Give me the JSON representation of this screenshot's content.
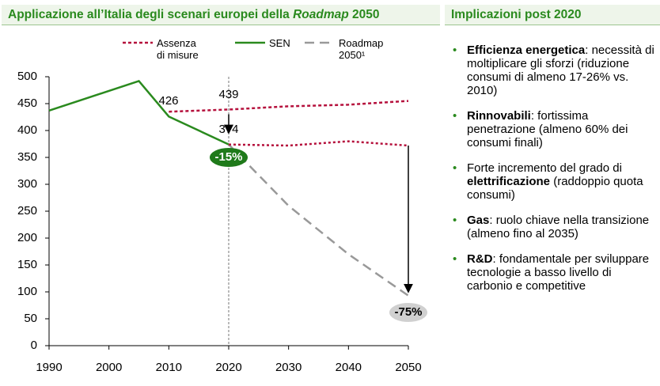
{
  "chart_data": {
    "type": "line",
    "title_parts": [
      {
        "text": "Applicazione all’Italia degli scenari europei della ",
        "italic": false
      },
      {
        "text": "Roadmap",
        "italic": true
      },
      {
        "text": " 2050",
        "italic": false
      }
    ],
    "xlim": [
      1990,
      2050
    ],
    "xticks": [
      1990,
      2000,
      2010,
      2020,
      2030,
      2040,
      2050
    ],
    "ylim": [
      0,
      500
    ],
    "yticks": [
      0,
      50,
      100,
      150,
      200,
      250,
      300,
      350,
      400,
      450,
      500
    ],
    "series": [
      {
        "name": "Assenza di misure",
        "color": "#b5103c",
        "dash": "4,3",
        "x": [
          2010,
          2020,
          2030,
          2040,
          2050
        ],
        "values": [
          435,
          439,
          445,
          448,
          455
        ]
      },
      {
        "name": "SEN",
        "color": "#2a8a1e",
        "dash": "none",
        "x": [
          1990,
          2005,
          2010,
          2020
        ],
        "values": [
          437,
          492,
          426,
          374
        ]
      },
      {
        "name": "Roadmap 2050¹",
        "color": "#999999",
        "dash": "12,7",
        "x": [
          2020,
          2030,
          2040,
          2050
        ],
        "values": [
          374,
          260,
          170,
          93
        ]
      },
      {
        "color": "#b5103c",
        "dash": "3,3",
        "x": [
          2020,
          2030,
          2040,
          2050
        ],
        "values": [
          374,
          372,
          380,
          372
        ]
      }
    ],
    "annotations": [
      "426",
      "439",
      "374",
      "-15%",
      "-75%"
    ]
  },
  "panel": {
    "title": "Implicazioni post 2020",
    "bullets": [
      [
        {
          "text": "Efficienza energetica",
          "bold": true
        },
        {
          "text": ": necessità di moltiplicare gli sforzi (riduzione consumi di almeno 17-26% vs. 2010)",
          "bold": false
        }
      ],
      [
        {
          "text": "Rinnovabili",
          "bold": true
        },
        {
          "text": ": fortissima penetrazione (almeno 60% dei consumi finali)",
          "bold": false
        }
      ],
      [
        {
          "text": "Forte incremento del grado di ",
          "bold": false
        },
        {
          "text": "elettrificazione",
          "bold": true
        },
        {
          "text": " (raddoppio quota consumi)",
          "bold": false
        }
      ],
      [
        {
          "text": "Gas",
          "bold": true
        },
        {
          "text": ": ruolo chiave nella transizione (almeno fino al 2035)",
          "bold": false
        }
      ],
      [
        {
          "text": "R&D",
          "bold": true
        },
        {
          "text": ": fondamentale per sviluppare tecnologie a basso livello di carbonio e competitive",
          "bold": false
        }
      ]
    ]
  }
}
